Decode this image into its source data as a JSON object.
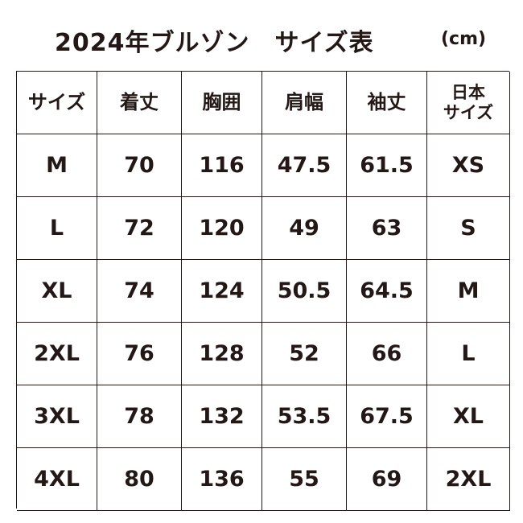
{
  "header": {
    "title": "2024年ブルゾン　サイズ表",
    "unit": "(cm)"
  },
  "table": {
    "columns": [
      "サイズ",
      "着丈",
      "胸囲",
      "肩幅",
      "袖丈",
      "日本\nサイズ"
    ],
    "rows": [
      [
        "M",
        "70",
        "116",
        "47.5",
        "61.5",
        "XS"
      ],
      [
        "L",
        "72",
        "120",
        "49",
        "63",
        "S"
      ],
      [
        "XL",
        "74",
        "124",
        "50.5",
        "64.5",
        "M"
      ],
      [
        "2XL",
        "76",
        "128",
        "52",
        "66",
        "L"
      ],
      [
        "3XL",
        "78",
        "132",
        "53.5",
        "67.5",
        "XL"
      ],
      [
        "4XL",
        "80",
        "136",
        "55",
        "69",
        "2XL"
      ]
    ]
  }
}
